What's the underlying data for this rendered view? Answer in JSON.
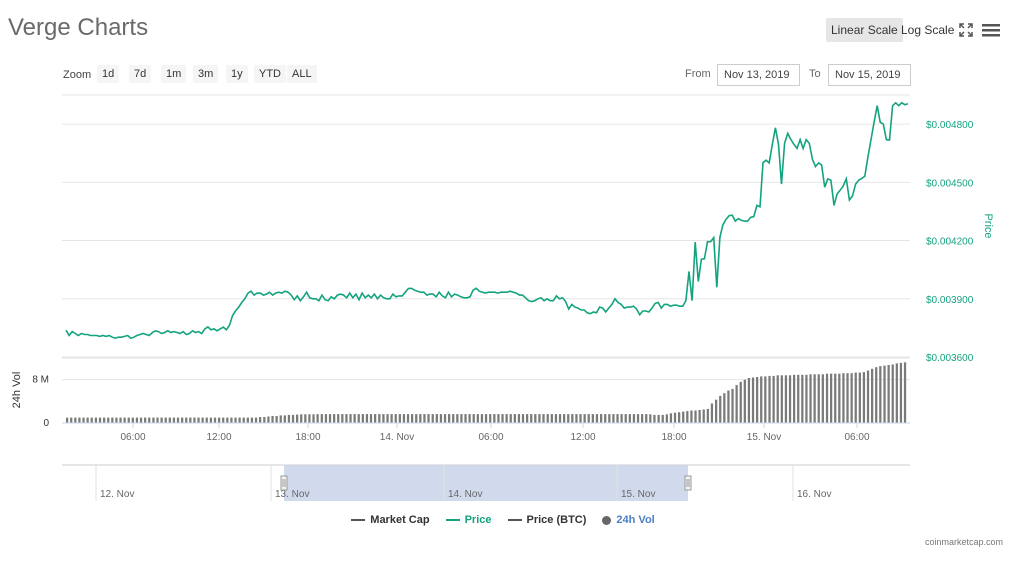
{
  "header": {
    "title": "Verge Charts",
    "linear_scale_label": "Linear Scale",
    "log_scale_label": "Log Scale",
    "fullscreen_icon": "fullscreen-icon",
    "menu_icon": "hamburger-menu-icon"
  },
  "zoom": {
    "label": "Zoom",
    "buttons": [
      "1d",
      "7d",
      "1m",
      "3m",
      "1y",
      "YTD",
      "ALL"
    ]
  },
  "range": {
    "from_label": "From",
    "from_value": "Nov 13, 2019",
    "to_label": "To",
    "to_value": "Nov 15, 2019"
  },
  "legend": [
    {
      "label": "Market Cap",
      "color": "#555555",
      "type": "line"
    },
    {
      "label": "Price",
      "color": "#14a37f",
      "type": "line"
    },
    {
      "label": "Price (BTC)",
      "color": "#555555",
      "type": "line"
    },
    {
      "label": "24h Vol",
      "color": "#666666",
      "type": "dot"
    }
  ],
  "watermark": "coinmarketcap.com",
  "colors": {
    "price_line": "#14a37f",
    "volume_bar": "#7a7a7a",
    "navigator_mask": "#ccd6eb"
  },
  "chart_data": {
    "type": "line",
    "price": {
      "ylabel": "Price",
      "ylim": [
        0.0036,
        0.00495
      ],
      "yticks": [
        "$0.003600",
        "$0.003900",
        "$0.004200",
        "$0.004500",
        "$0.004800"
      ],
      "values": [
        0.003738,
        0.003711,
        0.003731,
        0.003721,
        0.003711,
        0.003721,
        0.003716,
        0.003716,
        0.003711,
        0.003711,
        0.003711,
        0.003706,
        0.003711,
        0.003706,
        0.003711,
        0.003702,
        0.003697,
        0.003702,
        0.003702,
        0.003706,
        0.003711,
        0.003697,
        0.003702,
        0.003711,
        0.003716,
        0.003721,
        0.003716,
        0.003711,
        0.003726,
        0.003735,
        0.003731,
        0.003721,
        0.003726,
        0.003735,
        0.003726,
        0.003731,
        0.003726,
        0.003721,
        0.003731,
        0.003716,
        0.003721,
        0.003735,
        0.003726,
        0.003731,
        0.003721,
        0.003745,
        0.003755,
        0.00374,
        0.003745,
        0.003735,
        0.003745,
        0.003754,
        0.00374,
        0.003764,
        0.003813,
        0.003838,
        0.003857,
        0.003881,
        0.003901,
        0.003929,
        0.003939,
        0.003919,
        0.003929,
        0.003929,
        0.003919,
        0.003924,
        0.003934,
        0.003919,
        0.003929,
        0.003934,
        0.003929,
        0.003939,
        0.003934,
        0.003919,
        0.003895,
        0.003915,
        0.00389,
        0.00391,
        0.003934,
        0.003905,
        0.0039,
        0.0039,
        0.00389,
        0.003919,
        0.003895,
        0.00389,
        0.00391,
        0.0039,
        0.003919,
        0.003924,
        0.003919,
        0.003905,
        0.003929,
        0.003905,
        0.003924,
        0.003895,
        0.003929,
        0.003905,
        0.003919,
        0.003905,
        0.003924,
        0.0039,
        0.003919,
        0.003905,
        0.0039,
        0.0039,
        0.003924,
        0.00391,
        0.003915,
        0.003915,
        0.003934,
        0.003953,
        0.003954,
        0.003944,
        0.003939,
        0.003934,
        0.003934,
        0.003919,
        0.003924,
        0.003924,
        0.00391,
        0.003934,
        0.003915,
        0.003905,
        0.003934,
        0.00391,
        0.003924,
        0.003919,
        0.00391,
        0.003905,
        0.003905,
        0.00391,
        0.003944,
        0.003954,
        0.003939,
        0.003934,
        0.003929,
        0.003934,
        0.003934,
        0.003934,
        0.003929,
        0.003934,
        0.003934,
        0.003934,
        0.003939,
        0.003934,
        0.003929,
        0.003919,
        0.003919,
        0.003905,
        0.00389,
        0.003886,
        0.00389,
        0.0039,
        0.003905,
        0.00389,
        0.0039,
        0.00389,
        0.00389,
        0.003915,
        0.0039,
        0.003905,
        0.003886,
        0.003847,
        0.003871,
        0.003857,
        0.003852,
        0.003842,
        0.003842,
        0.003828,
        0.003823,
        0.003832,
        0.003828,
        0.003857,
        0.003852,
        0.003832,
        0.003852,
        0.003871,
        0.0039,
        0.003881,
        0.003871,
        0.003852,
        0.003857,
        0.003857,
        0.003862,
        0.003847,
        0.003818,
        0.003837,
        0.003837,
        0.003832,
        0.003852,
        0.003876,
        0.003881,
        0.003852,
        0.003871,
        0.003871,
        0.003862,
        0.003867,
        0.003867,
        0.003862,
        0.003862,
        0.003891,
        0.004041,
        0.00389,
        0.004192,
        0.003989,
        0.004104,
        0.004106,
        0.004194,
        0.004194,
        0.004215,
        0.003959,
        0.004217,
        0.004281,
        0.004309,
        0.004328,
        0.004331,
        0.0043,
        0.004313,
        0.004304,
        0.0043,
        0.0043,
        0.00432,
        0.004323,
        0.004381,
        0.004374,
        0.004601,
        0.004614,
        0.0046,
        0.004695,
        0.004781,
        0.004695,
        0.004491,
        0.004701,
        0.004752,
        0.004721,
        0.004696,
        0.004675,
        0.00472,
        0.004675,
        0.00472,
        0.004701,
        0.00462,
        0.004581,
        0.0046,
        0.00459,
        0.004475,
        0.004518,
        0.004511,
        0.004381,
        0.00444,
        0.004459,
        0.004481,
        0.004518,
        0.004409,
        0.00443,
        0.004491,
        0.004511,
        0.00452,
        0.004531,
        0.00463,
        0.00472,
        0.00481,
        0.004895,
        0.00481,
        0.0048,
        0.00472,
        0.004718,
        0.004895,
        0.00491,
        0.004895,
        0.00491,
        0.0049,
        0.004905
      ]
    },
    "volume": {
      "ylabel": "24h Vol",
      "ylim": [
        0,
        12000000
      ],
      "yticks": [
        {
          "label": "0",
          "value": 0
        },
        {
          "label": "8 M",
          "value": 8000000
        }
      ],
      "values": [
        1000000,
        1000000,
        1000000,
        1000000,
        1000000,
        1000000,
        1000000,
        1000000,
        1000000,
        1000000,
        1000000,
        1000000,
        1000000,
        1000000,
        1000000,
        1000000,
        1000000,
        1000000,
        1000000,
        1000000,
        1000000,
        1000000,
        1000000,
        1000000,
        1000000,
        1000000,
        1000000,
        1000000,
        1000000,
        1000000,
        1000000,
        1000000,
        1000000,
        1000000,
        1000000,
        1000000,
        1000000,
        1000000,
        1000000,
        1000000,
        1000000,
        1000000,
        1000000,
        1000000,
        1000000,
        1000000,
        1000000,
        1100000,
        1100000,
        1200000,
        1300000,
        1300000,
        1400000,
        1400000,
        1500000,
        1500000,
        1550000,
        1600000,
        1600000,
        1600000,
        1600000,
        1650000,
        1650000,
        1650000,
        1650000,
        1650000,
        1650000,
        1650000,
        1650000,
        1650000,
        1650000,
        1650000,
        1650000,
        1650000,
        1650000,
        1650000,
        1650000,
        1650000,
        1650000,
        1650000,
        1650000,
        1650000,
        1650000,
        1650000,
        1650000,
        1650000,
        1650000,
        1650000,
        1650000,
        1650000,
        1650000,
        1650000,
        1650000,
        1650000,
        1650000,
        1650000,
        1650000,
        1650000,
        1650000,
        1650000,
        1650000,
        1650000,
        1650000,
        1650000,
        1650000,
        1650000,
        1650000,
        1650000,
        1650000,
        1650000,
        1650000,
        1650000,
        1650000,
        1650000,
        1650000,
        1650000,
        1650000,
        1650000,
        1650000,
        1650000,
        1650000,
        1650000,
        1650000,
        1650000,
        1650000,
        1650000,
        1650000,
        1650000,
        1650000,
        1650000,
        1650000,
        1650000,
        1650000,
        1650000,
        1650000,
        1650000,
        1650000,
        1650000,
        1650000,
        1650000,
        1650000,
        1650000,
        1600000,
        1500000,
        1500000,
        1500000,
        1600000,
        1800000,
        1900000,
        2000000,
        2100000,
        2200000,
        2300000,
        2300000,
        2400000,
        2500000,
        2600000,
        3600000,
        4300000,
        5000000,
        5500000,
        6000000,
        6300000,
        7000000,
        7600000,
        8000000,
        8300000,
        8400000,
        8500000,
        8600000,
        8600000,
        8700000,
        8700000,
        8800000,
        8800000,
        8800000,
        8800000,
        8900000,
        8900000,
        8900000,
        8900000,
        9000000,
        9000000,
        9000000,
        9000000,
        9100000,
        9100000,
        9100000,
        9100000,
        9200000,
        9200000,
        9200000,
        9300000,
        9300000,
        9400000,
        9700000,
        10000000,
        10300000,
        10500000,
        10600000,
        10700000,
        10800000,
        11000000,
        11100000,
        11200000
      ]
    },
    "x_ticks": [
      "06:00",
      "12:00",
      "18:00",
      "14. Nov",
      "06:00",
      "12:00",
      "18:00",
      "15. Nov",
      "06:00"
    ],
    "navigator": {
      "labels": [
        "12. Nov",
        "13. Nov",
        "14. Nov",
        "15. Nov",
        "16. Nov"
      ]
    }
  }
}
